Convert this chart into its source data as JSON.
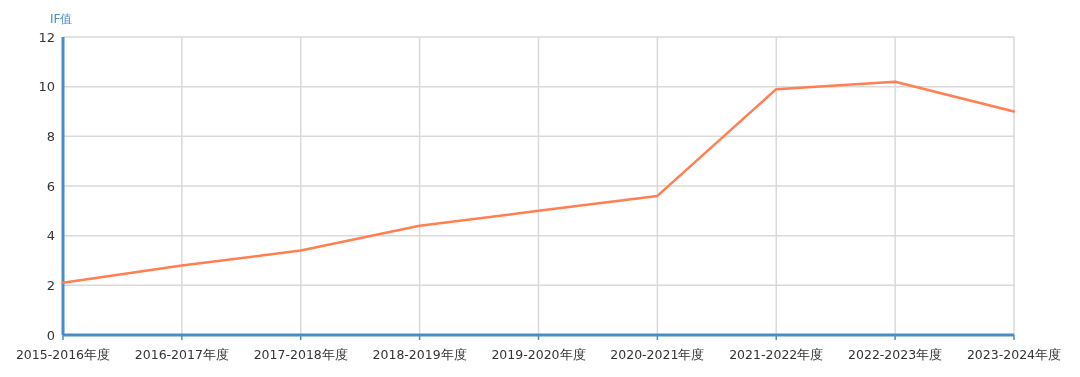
{
  "chart_data": {
    "type": "line",
    "ylabel": "IF值",
    "categories": [
      "2015-2016年度",
      "2016-2017年度",
      "2017-2018年度",
      "2018-2019年度",
      "2019-2020年度",
      "2020-2021年度",
      "2021-2022年度",
      "2022-2023年度",
      "2023-2024年度"
    ],
    "values": [
      2.1,
      2.8,
      3.4,
      4.4,
      5.0,
      5.6,
      9.9,
      10.2,
      9.0
    ],
    "color": "#ff7f50",
    "ylim": [
      0,
      12
    ],
    "yticks": [
      0,
      2,
      4,
      6,
      8,
      10,
      12
    ],
    "grid": true
  }
}
